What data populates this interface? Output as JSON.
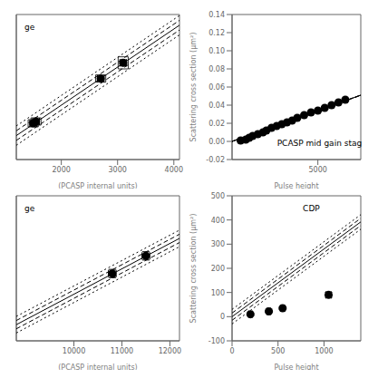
{
  "chart_data": [
    {
      "type": "scatter",
      "xlabel": "(PCASP internal units)",
      "annotation": "ge",
      "xlim": [
        1200,
        4100
      ],
      "xticks": [
        2000,
        3000,
        4000
      ],
      "ylim": [
        -0.1,
        1.1
      ],
      "tick_labels": "x",
      "grid": false,
      "series": [
        {
          "type": "line",
          "line_style": "solid",
          "color": "#000000",
          "x": [
            1200,
            4100
          ],
          "values": [
            0.098,
            1.0115
          ]
        },
        {
          "type": "line",
          "line_style": "dashed",
          "color": "#000000",
          "x": [
            1200,
            4100
          ],
          "values": [
            0.138,
            1.0515
          ]
        },
        {
          "type": "line",
          "line_style": "dashed",
          "color": "#000000",
          "x": [
            1200,
            4100
          ],
          "values": [
            0.058,
            0.9715
          ]
        },
        {
          "type": "line",
          "line_style": "dotted",
          "color": "#000000",
          "x": [
            1200,
            4100
          ],
          "values": [
            0.178,
            1.0915
          ]
        },
        {
          "type": "line",
          "line_style": "dotted",
          "color": "#000000",
          "x": [
            1200,
            4100
          ],
          "values": [
            0.018,
            0.9315
          ]
        },
        {
          "type": "scatter",
          "marker": "circle",
          "color": "#000000",
          "x": [
            1500,
            1550,
            2700,
            3100
          ],
          "values": [
            0.2,
            0.215,
            0.57,
            0.7
          ],
          "xerr": [
            60,
            60,
            60,
            60
          ],
          "yerr": [
            0.015,
            0.015,
            0.015,
            0.025
          ],
          "boxes": [
            {
              "x1": 1410,
              "x2": 1590,
              "y1": 0.17,
              "y2": 0.23
            },
            {
              "x1": 1460,
              "x2": 1640,
              "y1": 0.185,
              "y2": 0.245
            },
            {
              "x1": 2610,
              "x2": 2790,
              "y1": 0.54,
              "y2": 0.6
            },
            {
              "x1": 3010,
              "x2": 3190,
              "y1": 0.65,
              "y2": 0.75
            }
          ]
        }
      ]
    },
    {
      "type": "scatter",
      "xlabel": "Pulse height",
      "ylabel": "Scattering cross section (μm²)",
      "annotation": "PCASP mid gain stag",
      "xlim": [
        0,
        7500
      ],
      "xticks": [
        5000
      ],
      "ylim": [
        -0.02,
        0.14
      ],
      "yticks": [
        {
          "value": -0.02,
          "label": "-0.02"
        },
        {
          "value": 0,
          "label": "0.00"
        },
        {
          "value": 0.02,
          "label": "0.02"
        },
        {
          "value": 0.04,
          "label": "0.04"
        },
        {
          "value": 0.06,
          "label": "0.06"
        },
        {
          "value": 0.08,
          "label": "0.08"
        },
        {
          "value": 0.1,
          "label": "0.10"
        },
        {
          "value": 0.12,
          "label": "0.12"
        },
        {
          "value": 0.14,
          "label": "0.14"
        }
      ],
      "grid": false,
      "series": [
        {
          "type": "line",
          "line_style": "solid",
          "color": "#000000",
          "x": [
            0,
            7500
          ],
          "values": [
            0,
            0.051
          ]
        },
        {
          "type": "line",
          "line_style": "dashed",
          "color": "#000000",
          "x": [
            0,
            7500
          ],
          "values": [
            5e-07,
            0.0510005
          ]
        },
        {
          "type": "line",
          "line_style": "dashed",
          "color": "#000000",
          "x": [
            0,
            7500
          ],
          "values": [
            -5e-07,
            0.0509995
          ]
        },
        {
          "type": "line",
          "line_style": "dotted",
          "color": "#000000",
          "x": [
            0,
            7500
          ],
          "values": [
            1.2e-06,
            0.0510012
          ]
        },
        {
          "type": "line",
          "line_style": "dotted",
          "color": "#000000",
          "x": [
            0,
            7500
          ],
          "values": [
            -1.2e-06,
            0.0509988
          ]
        },
        {
          "type": "scatter",
          "marker": "circle",
          "color": "#000000",
          "x": [
            500,
            800,
            1000,
            1200,
            1500,
            1800,
            2000,
            2300,
            2600,
            2900,
            3200,
            3500,
            3800,
            4200,
            4600,
            5000,
            5400,
            5800,
            6200,
            6600
          ],
          "values": [
            0.001,
            0.002,
            0.004,
            0.006,
            0.008,
            0.01,
            0.012,
            0.015,
            0.017,
            0.019,
            0.021,
            0.023,
            0.026,
            0.029,
            0.032,
            0.034,
            0.037,
            0.04,
            0.043,
            0.046
          ]
        }
      ]
    },
    {
      "type": "scatter",
      "xlabel": "(PCASP internal units)",
      "annotation": "ge",
      "xlim": [
        8800,
        12200
      ],
      "xticks": [
        10000,
        11000,
        12000
      ],
      "ylim": [
        -0.3,
        1.1
      ],
      "tick_labels": "x",
      "grid": false,
      "series": [
        {
          "type": "line",
          "line_style": "solid",
          "color": "#000000",
          "x": [
            8800,
            12200
          ],
          "values": [
            -0.144,
            0.689
          ]
        },
        {
          "type": "line",
          "line_style": "dashed",
          "color": "#000000",
          "x": [
            8800,
            12200
          ],
          "values": [
            -0.104,
            0.729
          ]
        },
        {
          "type": "line",
          "line_style": "dashed",
          "color": "#000000",
          "x": [
            8800,
            12200
          ],
          "values": [
            -0.184,
            0.649
          ]
        },
        {
          "type": "line",
          "line_style": "dotted",
          "color": "#000000",
          "x": [
            8800,
            12200
          ],
          "values": [
            -0.064,
            0.769
          ]
        },
        {
          "type": "line",
          "line_style": "dotted",
          "color": "#000000",
          "x": [
            8800,
            12200
          ],
          "values": [
            -0.224,
            0.609
          ]
        },
        {
          "type": "scatter",
          "marker": "circle",
          "color": "#000000",
          "x": [
            10800,
            11500
          ],
          "values": [
            0.35,
            0.52
          ],
          "xerr": [
            80,
            80
          ],
          "yerr": [
            0.04,
            0.04
          ]
        }
      ]
    },
    {
      "type": "scatter",
      "xlabel": "Pulse height",
      "ylabel": "Scattering cross section (μm²)",
      "annotation": "CDP",
      "xlim": [
        0,
        1400
      ],
      "xticks": [
        0,
        500,
        1000
      ],
      "ylim": [
        -100,
        500
      ],
      "yticks": [
        -100,
        0,
        100,
        200,
        300,
        400,
        500
      ],
      "grid": false,
      "series": [
        {
          "type": "line",
          "line_style": "solid",
          "color": "#000000",
          "x": [
            0,
            1400
          ],
          "values": [
            0,
            392
          ]
        },
        {
          "type": "line",
          "line_style": "dashed",
          "color": "#000000",
          "x": [
            0,
            1400
          ],
          "values": [
            15,
            407
          ]
        },
        {
          "type": "line",
          "line_style": "dashed",
          "color": "#000000",
          "x": [
            0,
            1400
          ],
          "values": [
            -15,
            377
          ]
        },
        {
          "type": "line",
          "line_style": "dotted",
          "color": "#000000",
          "x": [
            0,
            1400
          ],
          "values": [
            30,
            422
          ]
        },
        {
          "type": "line",
          "line_style": "dotted",
          "color": "#000000",
          "x": [
            0,
            1400
          ],
          "values": [
            -30,
            362
          ]
        },
        {
          "type": "scatter",
          "marker": "circle",
          "color": "#000000",
          "x": [
            200,
            400,
            550,
            1050
          ],
          "values": [
            10,
            22,
            35,
            90
          ],
          "xerr": [
            20,
            20,
            20,
            30
          ],
          "yerr": [
            4,
            4,
            4,
            10
          ]
        }
      ]
    }
  ]
}
